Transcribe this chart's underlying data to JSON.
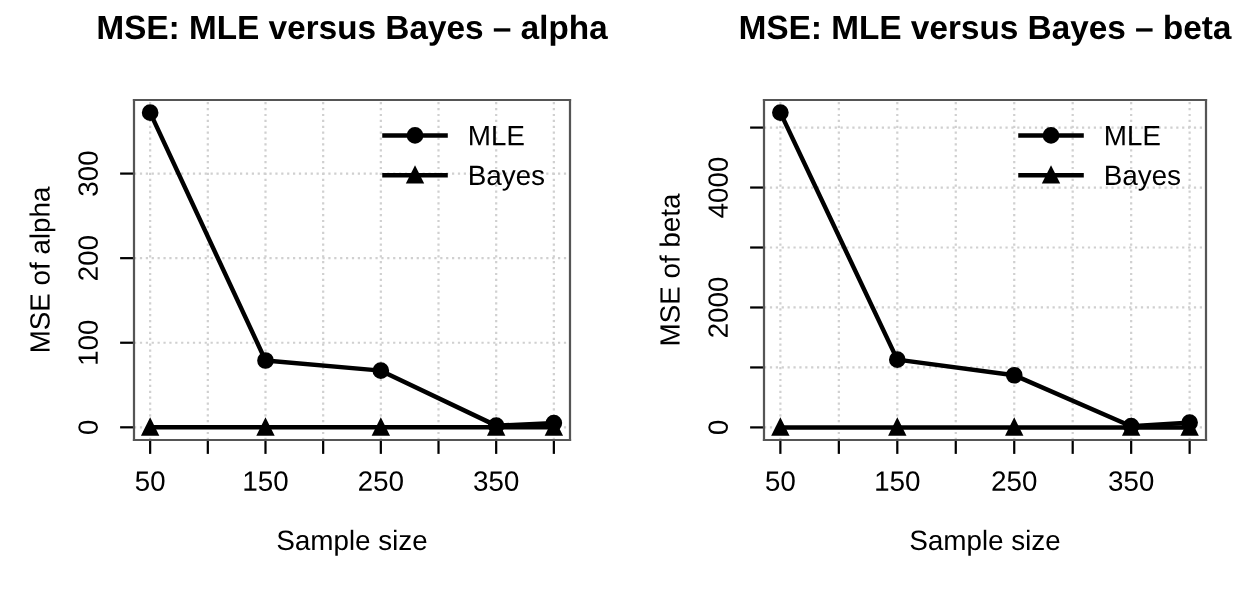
{
  "chart_data": [
    {
      "type": "line",
      "title": "MSE: MLE versus Bayes – alpha",
      "xlabel": "Sample size",
      "ylabel": "MSE of alpha",
      "x": [
        50,
        150,
        250,
        350,
        400
      ],
      "series": [
        {
          "name": "MLE",
          "color": "#000000",
          "marker": "circle",
          "values": [
            372,
            79,
            67,
            2,
            5
          ]
        },
        {
          "name": "Bayes",
          "color": "#000000",
          "marker": "triangle",
          "values": [
            0,
            0,
            0,
            0,
            0
          ]
        }
      ],
      "xlim": [
        36,
        414
      ],
      "xticks": [
        50,
        {
          "value": 100,
          "label": null
        },
        150,
        {
          "value": 200,
          "label": null
        },
        250,
        {
          "value": 300,
          "label": null
        },
        350,
        {
          "value": 400,
          "label": null
        }
      ],
      "ylim": [
        -15,
        387
      ],
      "yticks": [
        0,
        100,
        200,
        300
      ],
      "grid": true,
      "legend": "top right",
      "line_style": "solid"
    },
    {
      "type": "line",
      "title": "MSE: MLE versus Bayes – beta",
      "xlabel": "Sample size",
      "ylabel": "MSE of beta",
      "x": [
        50,
        150,
        250,
        350,
        400
      ],
      "series": [
        {
          "name": "MLE",
          "color": "#000000",
          "marker": "circle",
          "values": [
            5250,
            1130,
            870,
            20,
            80
          ]
        },
        {
          "name": "Bayes",
          "color": "#000000",
          "marker": "triangle",
          "values": [
            0,
            0,
            0,
            0,
            0
          ]
        }
      ],
      "xlim": [
        36,
        414
      ],
      "xticks": [
        50,
        {
          "value": 100,
          "label": null
        },
        150,
        {
          "value": 200,
          "label": null
        },
        250,
        {
          "value": 300,
          "label": null
        },
        350,
        {
          "value": 400,
          "label": null
        }
      ],
      "ylim": [
        -210,
        5460
      ],
      "yticks": [
        0,
        {
          "value": 1000,
          "label": null
        },
        2000,
        {
          "value": 3000,
          "label": null
        },
        4000,
        {
          "value": 5000,
          "label": null
        }
      ],
      "grid": true,
      "legend": "top right",
      "line_style": "solid"
    }
  ]
}
